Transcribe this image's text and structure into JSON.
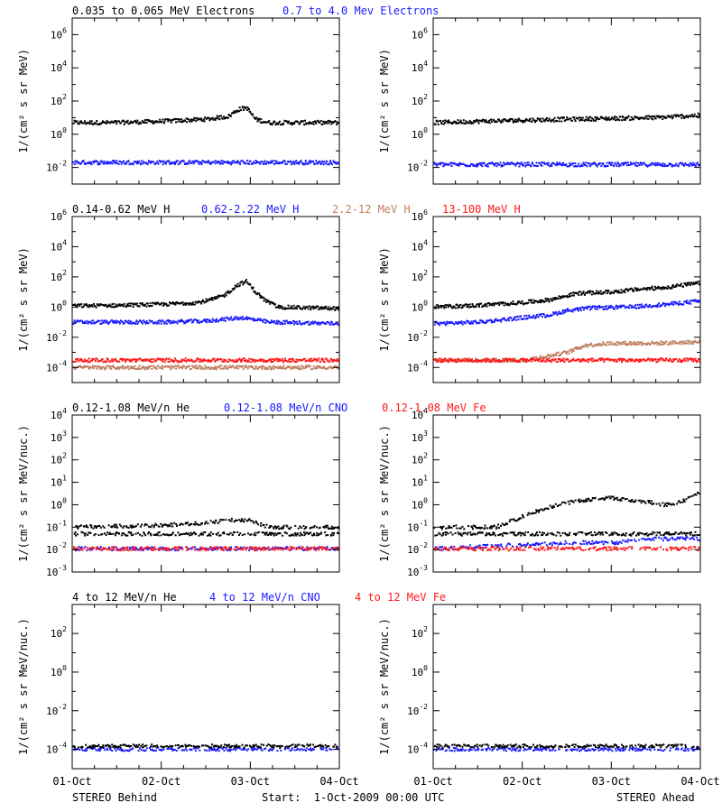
{
  "footer": {
    "left": "STEREO Behind",
    "center": "Start:  1-Oct-2009 00:00 UTC",
    "right": "STEREO Ahead"
  },
  "x_ticks": [
    "01-Oct",
    "02-Oct",
    "03-Oct",
    "04-Oct"
  ],
  "colors": {
    "black": "#000000",
    "blue": "#1a1aff",
    "tan": "#c08060",
    "red": "#ff1a1a"
  },
  "rows": [
    {
      "legend": [
        {
          "text": "0.035 to 0.065 MeV Electrons",
          "color": "#000000"
        },
        {
          "text": "0.7 to 4.0 Mev Electrons",
          "color": "#1a1aff"
        }
      ]
    },
    {
      "legend": [
        {
          "text": "0.14-0.62 MeV H",
          "color": "#000000"
        },
        {
          "text": "0.62-2.22 MeV H",
          "color": "#1a1aff"
        },
        {
          "text": "2.2-12 MeV H",
          "color": "#c08060"
        },
        {
          "text": "13-100 MeV H",
          "color": "#ff1a1a"
        }
      ]
    },
    {
      "legend": [
        {
          "text": "0.12-1.08 MeV/n He",
          "color": "#000000"
        },
        {
          "text": "0.12-1.08 MeV/n CNO",
          "color": "#1a1aff"
        },
        {
          "text": "0.12-1.08 MeV Fe",
          "color": "#ff1a1a"
        }
      ]
    },
    {
      "legend": [
        {
          "text": "4 to 12 MeV/n He",
          "color": "#000000"
        },
        {
          "text": "4 to 12 MeV/n CNO",
          "color": "#1a1aff"
        },
        {
          "text": "4 to 12 MeV Fe",
          "color": "#ff1a1a"
        }
      ]
    }
  ],
  "chart_data": [
    {
      "type": "scatter",
      "id": "r0-behind",
      "row": 0,
      "side": "behind",
      "ylabel": "1/(cm² s sr MeV)",
      "yscale": "log",
      "xlim": [
        0,
        3
      ],
      "ylim_exp": [
        -3,
        7
      ],
      "yticks_exp": [
        -2,
        0,
        2,
        4,
        6
      ],
      "series": [
        {
          "color": "black",
          "points": [
            [
              0,
              5
            ],
            [
              0.5,
              5
            ],
            [
              1.0,
              6
            ],
            [
              1.5,
              8
            ],
            [
              1.75,
              12
            ],
            [
              1.85,
              30
            ],
            [
              1.95,
              40
            ],
            [
              2.05,
              8
            ],
            [
              2.2,
              5
            ],
            [
              2.5,
              5
            ],
            [
              3.0,
              5
            ]
          ]
        },
        {
          "color": "blue",
          "points": [
            [
              0,
              0.02
            ],
            [
              1.0,
              0.02
            ],
            [
              2.0,
              0.02
            ],
            [
              3.0,
              0.02
            ]
          ]
        }
      ]
    },
    {
      "type": "scatter",
      "id": "r0-ahead",
      "row": 0,
      "side": "ahead",
      "ylabel": "1/(cm² s sr MeV)",
      "yscale": "log",
      "xlim": [
        0,
        3
      ],
      "ylim_exp": [
        -3,
        7
      ],
      "yticks_exp": [
        -2,
        0,
        2,
        4,
        6
      ],
      "series": [
        {
          "color": "black",
          "points": [
            [
              0,
              5
            ],
            [
              0.5,
              6
            ],
            [
              1.0,
              7
            ],
            [
              1.5,
              8
            ],
            [
              2.0,
              9
            ],
            [
              2.5,
              10
            ],
            [
              3.0,
              14
            ]
          ]
        },
        {
          "color": "blue",
          "points": [
            [
              0,
              0.015
            ],
            [
              1.0,
              0.015
            ],
            [
              2.0,
              0.015
            ],
            [
              3.0,
              0.015
            ]
          ]
        }
      ]
    },
    {
      "type": "scatter",
      "id": "r1-behind",
      "row": 1,
      "side": "behind",
      "ylabel": "1/(cm² s sr MeV)",
      "yscale": "log",
      "xlim": [
        0,
        3
      ],
      "ylim_exp": [
        -5,
        6
      ],
      "yticks_exp": [
        -4,
        -2,
        0,
        2,
        4,
        6
      ],
      "series": [
        {
          "color": "black",
          "points": [
            [
              0,
              1.2
            ],
            [
              0.5,
              1.3
            ],
            [
              1.0,
              1.5
            ],
            [
              1.4,
              2
            ],
            [
              1.55,
              3
            ],
            [
              1.7,
              6
            ],
            [
              1.85,
              30
            ],
            [
              1.95,
              50
            ],
            [
              2.05,
              10
            ],
            [
              2.15,
              3
            ],
            [
              2.3,
              1
            ],
            [
              3.0,
              0.8
            ]
          ]
        },
        {
          "color": "blue",
          "points": [
            [
              0,
              0.1
            ],
            [
              1.0,
              0.1
            ],
            [
              1.5,
              0.12
            ],
            [
              1.9,
              0.2
            ],
            [
              2.2,
              0.1
            ],
            [
              3.0,
              0.08
            ]
          ]
        },
        {
          "color": "red",
          "points": [
            [
              0,
              0.0003
            ],
            [
              1.0,
              0.0003
            ],
            [
              2.0,
              0.0003
            ],
            [
              3.0,
              0.0003
            ]
          ]
        },
        {
          "color": "tan",
          "points": [
            [
              0,
              0.0001
            ],
            [
              1.0,
              0.0001
            ],
            [
              2.0,
              0.0001
            ],
            [
              3.0,
              0.0001
            ]
          ]
        }
      ]
    },
    {
      "type": "scatter",
      "id": "r1-ahead",
      "row": 1,
      "side": "ahead",
      "ylabel": "1/(cm² s sr MeV)",
      "yscale": "log",
      "xlim": [
        0,
        3
      ],
      "ylim_exp": [
        -5,
        6
      ],
      "yticks_exp": [
        -4,
        -2,
        0,
        2,
        4,
        6
      ],
      "series": [
        {
          "color": "black",
          "points": [
            [
              0,
              1
            ],
            [
              0.5,
              1.3
            ],
            [
              1.0,
              2
            ],
            [
              1.3,
              3
            ],
            [
              1.6,
              8
            ],
            [
              2.0,
              10
            ],
            [
              2.3,
              15
            ],
            [
              2.6,
              20
            ],
            [
              3.0,
              40
            ]
          ]
        },
        {
          "color": "blue",
          "points": [
            [
              0,
              0.08
            ],
            [
              0.5,
              0.1
            ],
            [
              1.0,
              0.2
            ],
            [
              1.3,
              0.3
            ],
            [
              1.5,
              0.6
            ],
            [
              1.8,
              0.9
            ],
            [
              2.2,
              1
            ],
            [
              2.6,
              1.5
            ],
            [
              3.0,
              2.5
            ]
          ]
        },
        {
          "color": "tan",
          "points": [
            [
              1.0,
              0.0003
            ],
            [
              1.3,
              0.0006
            ],
            [
              1.5,
              0.001
            ],
            [
              1.7,
              0.003
            ],
            [
              2.0,
              0.004
            ],
            [
              2.5,
              0.004
            ],
            [
              3.0,
              0.005
            ]
          ]
        },
        {
          "color": "red",
          "points": [
            [
              0,
              0.0003
            ],
            [
              1.0,
              0.0003
            ],
            [
              2.0,
              0.0003
            ],
            [
              3.0,
              0.0003
            ]
          ]
        }
      ]
    },
    {
      "type": "scatter",
      "id": "r2-behind",
      "row": 2,
      "side": "behind",
      "ylabel": "1/(cm² s sr MeV/nuc.)",
      "yscale": "log",
      "xlim": [
        0,
        3
      ],
      "ylim_exp": [
        -3,
        4
      ],
      "yticks_exp": [
        -3,
        -2,
        -1,
        0,
        1,
        2,
        3,
        4
      ],
      "series": [
        {
          "color": "black",
          "points": [
            [
              0,
              0.1
            ],
            [
              1.0,
              0.12
            ],
            [
              1.5,
              0.15
            ],
            [
              1.7,
              0.2
            ],
            [
              2.0,
              0.2
            ],
            [
              2.2,
              0.1
            ],
            [
              3.0,
              0.1
            ]
          ]
        },
        {
          "color": "black",
          "points": [
            [
              0,
              0.05
            ],
            [
              1.0,
              0.05
            ],
            [
              2.0,
              0.05
            ],
            [
              3.0,
              0.05
            ]
          ]
        },
        {
          "color": "blue",
          "points": [
            [
              0,
              0.011
            ],
            [
              1.0,
              0.011
            ],
            [
              2.0,
              0.011
            ],
            [
              3.0,
              0.011
            ]
          ]
        },
        {
          "color": "red",
          "points": [
            [
              0,
              0.011
            ],
            [
              1.0,
              0.011
            ],
            [
              2.0,
              0.011
            ],
            [
              3.0,
              0.011
            ]
          ]
        }
      ]
    },
    {
      "type": "scatter",
      "id": "r2-ahead",
      "row": 2,
      "side": "ahead",
      "ylabel": "1/(cm² s sr MeV/nuc.)",
      "yscale": "log",
      "xlim": [
        0,
        3
      ],
      "ylim_exp": [
        -3,
        4
      ],
      "yticks_exp": [
        -3,
        -2,
        -1,
        0,
        1,
        2,
        3,
        4
      ],
      "series": [
        {
          "color": "black",
          "points": [
            [
              0,
              0.1
            ],
            [
              0.7,
              0.1
            ],
            [
              1.0,
              0.3
            ],
            [
              1.3,
              0.8
            ],
            [
              1.6,
              1.5
            ],
            [
              2.0,
              2
            ],
            [
              2.3,
              1.5
            ],
            [
              2.6,
              1
            ],
            [
              2.8,
              1.5
            ],
            [
              2.9,
              3
            ],
            [
              3.0,
              3
            ]
          ]
        },
        {
          "color": "black",
          "points": [
            [
              0,
              0.05
            ],
            [
              0.8,
              0.05
            ]
          ]
        },
        {
          "color": "blue",
          "points": [
            [
              0,
              0.011
            ],
            [
              1.5,
              0.02
            ],
            [
              2.0,
              0.02
            ],
            [
              2.5,
              0.03
            ],
            [
              3.0,
              0.03
            ]
          ]
        },
        {
          "color": "red",
          "points": [
            [
              0,
              0.011
            ],
            [
              1.0,
              0.011
            ],
            [
              2.0,
              0.011
            ],
            [
              3.0,
              0.011
            ]
          ]
        }
      ]
    },
    {
      "type": "scatter",
      "id": "r3-behind",
      "row": 3,
      "side": "behind",
      "ylabel": "1/(cm² s sr MeV/nuc.)",
      "yscale": "log",
      "xlim": [
        0,
        3
      ],
      "ylim_exp": [
        -5,
        3.5
      ],
      "yticks_exp": [
        -4,
        -2,
        0,
        2
      ],
      "series": [
        {
          "color": "blue",
          "points": [
            [
              0,
              0.0001
            ],
            [
              1.0,
              0.0001
            ],
            [
              2.0,
              0.0001
            ],
            [
              3.0,
              0.0001
            ]
          ]
        },
        {
          "color": "black",
          "points": [
            [
              0.1,
              0.00015
            ],
            [
              1.0,
              0.00015
            ],
            [
              2.0,
              0.00015
            ],
            [
              2.9,
              0.00015
            ]
          ]
        }
      ]
    },
    {
      "type": "scatter",
      "id": "r3-ahead",
      "row": 3,
      "side": "ahead",
      "ylabel": "1/(cm² s sr MeV/nuc.)",
      "yscale": "log",
      "xlim": [
        0,
        3
      ],
      "ylim_exp": [
        -5,
        3.5
      ],
      "yticks_exp": [
        -4,
        -2,
        0,
        2
      ],
      "series": [
        {
          "color": "blue",
          "points": [
            [
              0,
              0.0001
            ],
            [
              1.0,
              0.0001
            ],
            [
              2.0,
              0.0001
            ],
            [
              3.0,
              0.0001
            ]
          ]
        },
        {
          "color": "black",
          "points": [
            [
              0.1,
              0.00015
            ],
            [
              1.0,
              0.00015
            ],
            [
              2.0,
              0.00015
            ],
            [
              2.9,
              0.00015
            ]
          ]
        }
      ]
    }
  ]
}
